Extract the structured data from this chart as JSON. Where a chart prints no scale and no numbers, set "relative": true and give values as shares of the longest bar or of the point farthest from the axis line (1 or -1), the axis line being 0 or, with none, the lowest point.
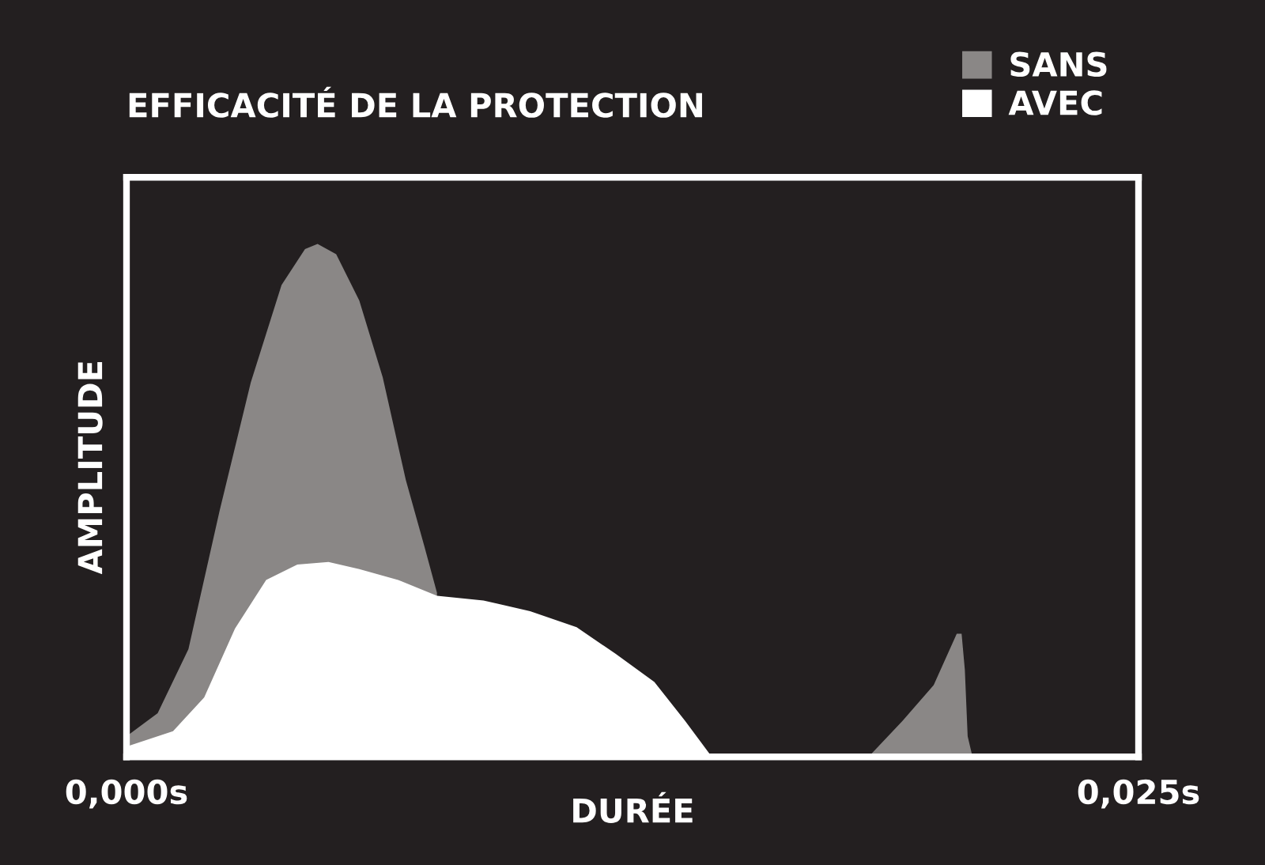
{
  "chart_data": {
    "type": "area",
    "title": "EFFICACITÉ DE LA PROTECTION",
    "xlabel": "DURÉE",
    "ylabel": "AMPLITUDE",
    "relative": true,
    "xlim": [
      0,
      0.025
    ],
    "xticks": [
      {
        "value": 0,
        "label": "0,000s"
      },
      {
        "value": 0.025,
        "label": "0,025s"
      }
    ],
    "legend": "top right",
    "series": [
      {
        "name": "SANS",
        "color": "#8a8786",
        "x": [
          0,
          0.00077,
          0.00153,
          0.0023,
          0.00307,
          0.00383,
          0.00441,
          0.00472,
          0.00518,
          0.00575,
          0.00633,
          0.0069,
          0.00736,
          0.00767,
          0.00805,
          0.011,
          0.01446,
          0.01833,
          0.01917,
          0.01994,
          0.02051,
          0.02063,
          0.02071,
          0.02078,
          0.0209,
          0.025
        ],
        "values": [
          0.04,
          0.085,
          0.21,
          0.48,
          0.73,
          0.92,
          0.99,
          1.0,
          0.98,
          0.89,
          0.74,
          0.54,
          0.41,
          0.32,
          null,
          null,
          0,
          0,
          0.07,
          0.14,
          0.24,
          0.24,
          0.17,
          0.04,
          0,
          0
        ]
      },
      {
        "name": "AVEC",
        "color": "#ffffff",
        "x": [
          0,
          0.00115,
          0.00192,
          0.00268,
          0.00345,
          0.00422,
          0.00499,
          0.00575,
          0.00671,
          0.00767,
          0.00882,
          0.00997,
          0.01112,
          0.01208,
          0.01304,
          0.0138,
          0.01446,
          0.025
        ],
        "values": [
          0.02,
          0.05,
          0.116,
          0.25,
          0.345,
          0.375,
          0.38,
          0.366,
          0.345,
          0.314,
          0.305,
          0.284,
          0.253,
          0.201,
          0.146,
          0.07,
          0,
          0
        ]
      }
    ]
  }
}
